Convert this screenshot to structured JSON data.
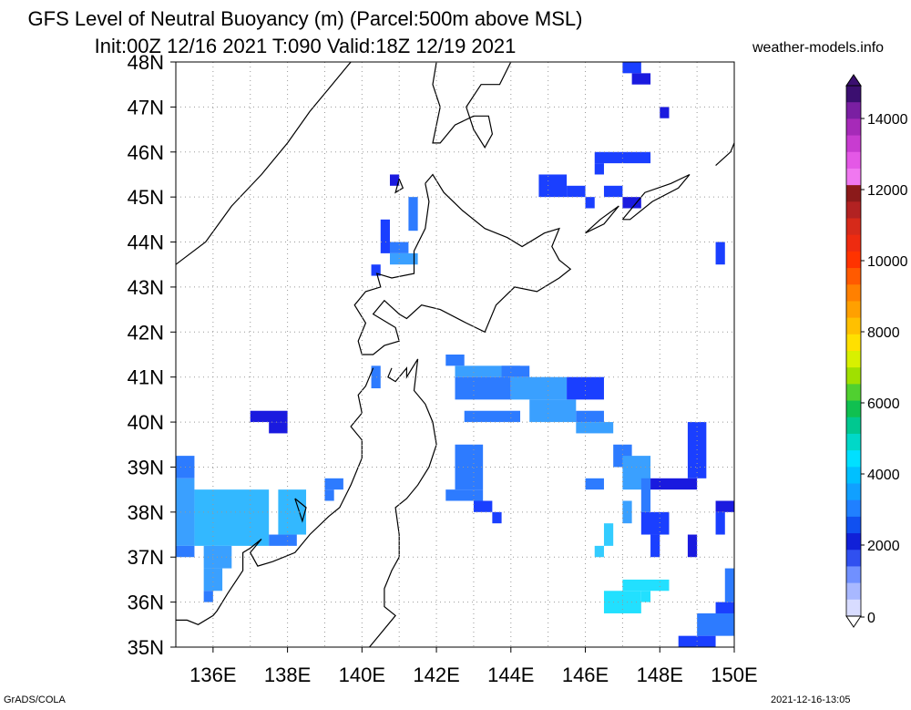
{
  "title": {
    "line1": "GFS Level of Neutral Buoyancy (m) (Parcel:500m above MSL)",
    "line2": "Init:00Z 12/16 2021 T:090 Valid:18Z 12/19 2021"
  },
  "site": "weather-models.info",
  "footer": {
    "left": "GrADS/COLA",
    "right": "2021-12-16-13:05"
  },
  "axes": {
    "lat_labels": [
      "48N",
      "47N",
      "46N",
      "45N",
      "44N",
      "43N",
      "42N",
      "41N",
      "40N",
      "39N",
      "38N",
      "37N",
      "36N",
      "35N"
    ],
    "lon_labels": [
      "136E",
      "138E",
      "140E",
      "142E",
      "144E",
      "146E",
      "148E",
      "150E"
    ]
  },
  "colorbar": {
    "labels": [
      "14000",
      "12000",
      "10000",
      "8000",
      "6000",
      "4000",
      "2000",
      "0"
    ],
    "colors": [
      "#3b0f70",
      "#7a1fa2",
      "#a62ab8",
      "#c83cd0",
      "#e458e6",
      "#f078f0",
      "#8b1a1a",
      "#b22222",
      "#d62a1a",
      "#ee2b10",
      "#ff3300",
      "#ff5a00",
      "#ff8000",
      "#ffa000",
      "#ffc000",
      "#ffe000",
      "#d8f000",
      "#a0e000",
      "#50d030",
      "#10c050",
      "#00c890",
      "#00d8c8",
      "#00e0ff",
      "#00c0ff",
      "#10a0ff",
      "#2080ff",
      "#1050f0",
      "#1020d8",
      "#3050f0",
      "#7090ff",
      "#a8b8ff",
      "#d8dcff"
    ]
  },
  "map_data": {
    "lon_range": [
      135,
      150
    ],
    "lat_range": [
      35,
      48
    ],
    "field": "Level of Neutral Buoyancy (m)",
    "cells": [
      {
        "lon": 147.0,
        "lat": 47.75,
        "w": 0.5,
        "h": 0.25,
        "c": "#1a3fff"
      },
      {
        "lon": 147.25,
        "lat": 47.5,
        "w": 0.5,
        "h": 0.25,
        "c": "#1a1adf"
      },
      {
        "lon": 148.0,
        "lat": 46.75,
        "w": 0.25,
        "h": 0.25,
        "c": "#1a1adf"
      },
      {
        "lon": 146.25,
        "lat": 45.75,
        "w": 1.5,
        "h": 0.25,
        "c": "#1a3fff"
      },
      {
        "lon": 146.25,
        "lat": 45.5,
        "w": 0.25,
        "h": 0.25,
        "c": "#1a3fff"
      },
      {
        "lon": 144.75,
        "lat": 45.0,
        "w": 0.75,
        "h": 0.5,
        "c": "#1a3fff"
      },
      {
        "lon": 145.5,
        "lat": 45.0,
        "w": 0.5,
        "h": 0.25,
        "c": "#1a3fff"
      },
      {
        "lon": 146.5,
        "lat": 45.0,
        "w": 0.5,
        "h": 0.25,
        "c": "#1a3fff"
      },
      {
        "lon": 147.0,
        "lat": 44.75,
        "w": 0.5,
        "h": 0.25,
        "c": "#1a1adf"
      },
      {
        "lon": 146.0,
        "lat": 44.75,
        "w": 0.25,
        "h": 0.25,
        "c": "#1a3fff"
      },
      {
        "lon": 140.75,
        "lat": 45.25,
        "w": 0.25,
        "h": 0.25,
        "c": "#1a1adf"
      },
      {
        "lon": 141.25,
        "lat": 44.25,
        "w": 0.25,
        "h": 0.75,
        "c": "#2d7bff"
      },
      {
        "lon": 140.5,
        "lat": 43.75,
        "w": 0.25,
        "h": 0.75,
        "c": "#1a3fff"
      },
      {
        "lon": 140.75,
        "lat": 43.75,
        "w": 0.5,
        "h": 0.25,
        "c": "#2d7bff"
      },
      {
        "lon": 140.75,
        "lat": 43.5,
        "w": 0.75,
        "h": 0.25,
        "c": "#3aa0ff"
      },
      {
        "lon": 140.25,
        "lat": 43.25,
        "w": 0.25,
        "h": 0.25,
        "c": "#1a3fff"
      },
      {
        "lon": 149.5,
        "lat": 43.5,
        "w": 0.25,
        "h": 0.5,
        "c": "#1a3fff"
      },
      {
        "lon": 142.25,
        "lat": 41.25,
        "w": 0.5,
        "h": 0.25,
        "c": "#2d7bff"
      },
      {
        "lon": 142.5,
        "lat": 41.0,
        "w": 1.75,
        "h": 0.25,
        "c": "#3aa0ff"
      },
      {
        "lon": 143.75,
        "lat": 41.0,
        "w": 0.75,
        "h": 0.25,
        "c": "#2d7bff"
      },
      {
        "lon": 142.5,
        "lat": 40.5,
        "w": 1.5,
        "h": 0.5,
        "c": "#2d7bff"
      },
      {
        "lon": 144.0,
        "lat": 40.5,
        "w": 1.5,
        "h": 0.5,
        "c": "#3aa0ff"
      },
      {
        "lon": 145.5,
        "lat": 40.5,
        "w": 1.0,
        "h": 0.5,
        "c": "#1a3fff"
      },
      {
        "lon": 142.75,
        "lat": 40.0,
        "w": 1.5,
        "h": 0.25,
        "c": "#2d7bff"
      },
      {
        "lon": 144.5,
        "lat": 40.0,
        "w": 1.25,
        "h": 0.5,
        "c": "#3aa0ff"
      },
      {
        "lon": 145.75,
        "lat": 40.0,
        "w": 0.75,
        "h": 0.25,
        "c": "#2d7bff"
      },
      {
        "lon": 145.75,
        "lat": 39.75,
        "w": 1.0,
        "h": 0.25,
        "c": "#3aa0ff"
      },
      {
        "lon": 140.25,
        "lat": 40.75,
        "w": 0.25,
        "h": 0.5,
        "c": "#2d7bff"
      },
      {
        "lon": 137.0,
        "lat": 40.0,
        "w": 1.0,
        "h": 0.25,
        "c": "#1a1adf"
      },
      {
        "lon": 137.5,
        "lat": 39.75,
        "w": 0.5,
        "h": 0.25,
        "c": "#1a1adf"
      },
      {
        "lon": 142.5,
        "lat": 38.5,
        "w": 0.75,
        "h": 1.0,
        "c": "#2d7bff"
      },
      {
        "lon": 142.25,
        "lat": 38.25,
        "w": 1.0,
        "h": 0.25,
        "c": "#2d7bff"
      },
      {
        "lon": 143.0,
        "lat": 38.0,
        "w": 0.5,
        "h": 0.25,
        "c": "#1a3fff"
      },
      {
        "lon": 143.5,
        "lat": 37.75,
        "w": 0.25,
        "h": 0.25,
        "c": "#1a3fff"
      },
      {
        "lon": 146.75,
        "lat": 39.0,
        "w": 0.5,
        "h": 0.5,
        "c": "#2d7bff"
      },
      {
        "lon": 147.0,
        "lat": 38.5,
        "w": 0.75,
        "h": 0.75,
        "c": "#3aa0ff"
      },
      {
        "lon": 146.0,
        "lat": 38.5,
        "w": 0.5,
        "h": 0.25,
        "c": "#2d7bff"
      },
      {
        "lon": 147.5,
        "lat": 38.0,
        "w": 0.25,
        "h": 0.75,
        "c": "#2d7bff"
      },
      {
        "lon": 147.75,
        "lat": 38.5,
        "w": 1.25,
        "h": 0.25,
        "c": "#1a1adf"
      },
      {
        "lon": 148.75,
        "lat": 38.75,
        "w": 0.5,
        "h": 1.25,
        "c": "#1a3fff"
      },
      {
        "lon": 147.0,
        "lat": 37.75,
        "w": 0.25,
        "h": 0.5,
        "c": "#3aa0ff"
      },
      {
        "lon": 147.5,
        "lat": 37.5,
        "w": 0.75,
        "h": 0.5,
        "c": "#1a3fff"
      },
      {
        "lon": 146.5,
        "lat": 37.25,
        "w": 0.25,
        "h": 0.5,
        "c": "#33ccff"
      },
      {
        "lon": 146.25,
        "lat": 37.0,
        "w": 0.25,
        "h": 0.25,
        "c": "#33ccff"
      },
      {
        "lon": 147.75,
        "lat": 37.0,
        "w": 0.25,
        "h": 0.5,
        "c": "#1a3fff"
      },
      {
        "lon": 148.75,
        "lat": 37.0,
        "w": 0.25,
        "h": 0.5,
        "c": "#1a1adf"
      },
      {
        "lon": 149.5,
        "lat": 38.0,
        "w": 0.5,
        "h": 0.25,
        "c": "#1a1adf"
      },
      {
        "lon": 149.5,
        "lat": 37.5,
        "w": 0.25,
        "h": 0.5,
        "c": "#1a3fff"
      },
      {
        "lon": 147.0,
        "lat": 36.25,
        "w": 1.25,
        "h": 0.25,
        "c": "#22e0ff"
      },
      {
        "lon": 146.5,
        "lat": 35.75,
        "w": 1.0,
        "h": 0.5,
        "c": "#22e0ff"
      },
      {
        "lon": 147.5,
        "lat": 36.0,
        "w": 0.25,
        "h": 0.25,
        "c": "#22e0ff"
      },
      {
        "lon": 149.75,
        "lat": 36.0,
        "w": 0.25,
        "h": 0.75,
        "c": "#2d7bff"
      },
      {
        "lon": 149.5,
        "lat": 35.5,
        "w": 0.5,
        "h": 0.5,
        "c": "#1a3fff"
      },
      {
        "lon": 149.0,
        "lat": 35.25,
        "w": 1.0,
        "h": 0.5,
        "c": "#2d7bff"
      },
      {
        "lon": 148.5,
        "lat": 35.0,
        "w": 1.0,
        "h": 0.25,
        "c": "#1a3fff"
      },
      {
        "lon": 135.0,
        "lat": 38.75,
        "w": 0.5,
        "h": 0.5,
        "c": "#2d7bff"
      },
      {
        "lon": 135.0,
        "lat": 37.25,
        "w": 0.5,
        "h": 1.5,
        "c": "#3aa0ff"
      },
      {
        "lon": 135.0,
        "lat": 37.0,
        "w": 0.5,
        "h": 0.25,
        "c": "#2d7bff"
      },
      {
        "lon": 135.5,
        "lat": 37.25,
        "w": 2.0,
        "h": 1.25,
        "c": "#33b8ff"
      },
      {
        "lon": 137.75,
        "lat": 37.5,
        "w": 0.75,
        "h": 1.0,
        "c": "#33b8ff"
      },
      {
        "lon": 137.5,
        "lat": 37.25,
        "w": 0.75,
        "h": 0.25,
        "c": "#2d7bff"
      },
      {
        "lon": 135.75,
        "lat": 36.75,
        "w": 0.75,
        "h": 0.5,
        "c": "#3aa0ff"
      },
      {
        "lon": 135.75,
        "lat": 36.25,
        "w": 0.5,
        "h": 0.5,
        "c": "#3aa0ff"
      },
      {
        "lon": 135.75,
        "lat": 36.0,
        "w": 0.25,
        "h": 0.25,
        "c": "#2d7bff"
      },
      {
        "lon": 139.0,
        "lat": 38.5,
        "w": 0.5,
        "h": 0.25,
        "c": "#2d7bff"
      },
      {
        "lon": 139.0,
        "lat": 38.25,
        "w": 0.25,
        "h": 0.25,
        "c": "#2d7bff"
      }
    ],
    "coastlines": [
      [
        [
          135.0,
          43.5
        ],
        [
          135.8,
          44.0
        ],
        [
          136.5,
          44.8
        ],
        [
          137.3,
          45.5
        ],
        [
          138.0,
          46.2
        ],
        [
          138.6,
          46.9
        ],
        [
          139.1,
          47.4
        ],
        [
          139.5,
          47.8
        ],
        [
          139.7,
          48.0
        ]
      ],
      [
        [
          142.0,
          48.0
        ],
        [
          141.9,
          47.5
        ],
        [
          142.1,
          47.0
        ],
        [
          142.0,
          46.6
        ],
        [
          141.9,
          46.2
        ],
        [
          142.1,
          46.2
        ],
        [
          142.5,
          46.6
        ],
        [
          143.0,
          46.8
        ],
        [
          143.4,
          46.8
        ],
        [
          143.5,
          46.4
        ],
        [
          143.3,
          46.1
        ],
        [
          143.0,
          46.5
        ],
        [
          142.8,
          47.0
        ],
        [
          143.2,
          47.5
        ],
        [
          143.7,
          47.5
        ],
        [
          144.0,
          48.0
        ]
      ],
      [
        [
          141.7,
          45.3
        ],
        [
          141.9,
          45.5
        ],
        [
          142.2,
          45.1
        ],
        [
          142.7,
          44.7
        ],
        [
          143.3,
          44.3
        ],
        [
          143.9,
          44.1
        ],
        [
          144.3,
          43.9
        ],
        [
          144.9,
          44.2
        ],
        [
          145.3,
          44.3
        ],
        [
          145.1,
          43.9
        ],
        [
          145.3,
          43.6
        ],
        [
          145.6,
          43.4
        ],
        [
          145.3,
          43.2
        ],
        [
          144.7,
          42.9
        ],
        [
          144.1,
          43.0
        ],
        [
          143.6,
          42.6
        ],
        [
          143.3,
          42.0
        ],
        [
          142.8,
          42.2
        ],
        [
          142.1,
          42.5
        ],
        [
          141.6,
          42.6
        ],
        [
          141.2,
          42.3
        ],
        [
          141.0,
          42.4
        ],
        [
          140.6,
          42.7
        ],
        [
          140.3,
          42.4
        ],
        [
          140.9,
          42.1
        ],
        [
          141.0,
          41.8
        ],
        [
          140.6,
          41.7
        ],
        [
          140.3,
          41.5
        ],
        [
          140.0,
          41.5
        ],
        [
          139.9,
          41.8
        ],
        [
          140.1,
          42.2
        ],
        [
          139.8,
          42.6
        ],
        [
          140.1,
          42.9
        ],
        [
          140.5,
          43.0
        ],
        [
          140.4,
          43.3
        ],
        [
          140.8,
          43.2
        ],
        [
          141.4,
          43.3
        ],
        [
          141.4,
          43.8
        ],
        [
          141.7,
          44.3
        ],
        [
          141.8,
          44.9
        ],
        [
          141.7,
          45.3
        ]
      ],
      [
        [
          140.8,
          41.2
        ],
        [
          140.7,
          41.0
        ],
        [
          140.9,
          40.9
        ],
        [
          141.2,
          41.2
        ],
        [
          141.2,
          41.0
        ],
        [
          141.5,
          41.4
        ],
        [
          141.4,
          40.7
        ],
        [
          141.7,
          40.4
        ],
        [
          141.9,
          40.0
        ],
        [
          142.0,
          39.5
        ],
        [
          141.8,
          39.0
        ],
        [
          141.5,
          38.6
        ],
        [
          141.2,
          38.3
        ],
        [
          140.9,
          38.1
        ],
        [
          141.0,
          37.5
        ],
        [
          141.0,
          37.0
        ],
        [
          140.8,
          36.7
        ],
        [
          140.6,
          36.3
        ],
        [
          140.6,
          35.9
        ],
        [
          140.9,
          35.7
        ],
        [
          140.4,
          35.2
        ],
        [
          140.2,
          35.0
        ]
      ],
      [
        [
          140.3,
          41.2
        ],
        [
          140.1,
          40.8
        ],
        [
          139.9,
          40.6
        ],
        [
          140.0,
          40.2
        ],
        [
          139.7,
          39.9
        ],
        [
          140.0,
          39.6
        ],
        [
          140.0,
          39.2
        ],
        [
          139.7,
          38.6
        ],
        [
          139.4,
          38.1
        ],
        [
          139.1,
          37.9
        ],
        [
          138.6,
          37.5
        ],
        [
          138.2,
          37.1
        ],
        [
          137.6,
          36.9
        ],
        [
          137.2,
          36.8
        ],
        [
          137.0,
          37.1
        ],
        [
          137.3,
          37.4
        ],
        [
          137.0,
          37.2
        ],
        [
          136.8,
          37.1
        ],
        [
          136.8,
          36.7
        ],
        [
          136.4,
          36.2
        ],
        [
          136.1,
          35.8
        ],
        [
          136.0,
          35.7
        ],
        [
          135.6,
          35.5
        ],
        [
          135.3,
          35.6
        ],
        [
          135.0,
          35.6
        ]
      ],
      [
        [
          141.0,
          45.4
        ],
        [
          141.1,
          45.2
        ],
        [
          140.9,
          45.1
        ],
        [
          141.0,
          45.4
        ]
      ],
      [
        [
          147.0,
          44.5
        ],
        [
          147.6,
          45.1
        ],
        [
          148.3,
          45.3
        ],
        [
          148.8,
          45.5
        ],
        [
          148.5,
          45.2
        ],
        [
          147.8,
          44.9
        ],
        [
          147.2,
          44.5
        ],
        [
          147.0,
          44.5
        ]
      ],
      [
        [
          146.0,
          44.2
        ],
        [
          146.4,
          44.5
        ],
        [
          146.9,
          44.8
        ],
        [
          146.5,
          44.4
        ],
        [
          146.0,
          44.2
        ]
      ],
      [
        [
          149.5,
          45.7
        ],
        [
          149.9,
          46.0
        ],
        [
          150.0,
          46.2
        ]
      ],
      [
        [
          138.2,
          38.3
        ],
        [
          138.5,
          38.1
        ],
        [
          138.4,
          37.8
        ],
        [
          138.2,
          38.3
        ]
      ]
    ]
  }
}
